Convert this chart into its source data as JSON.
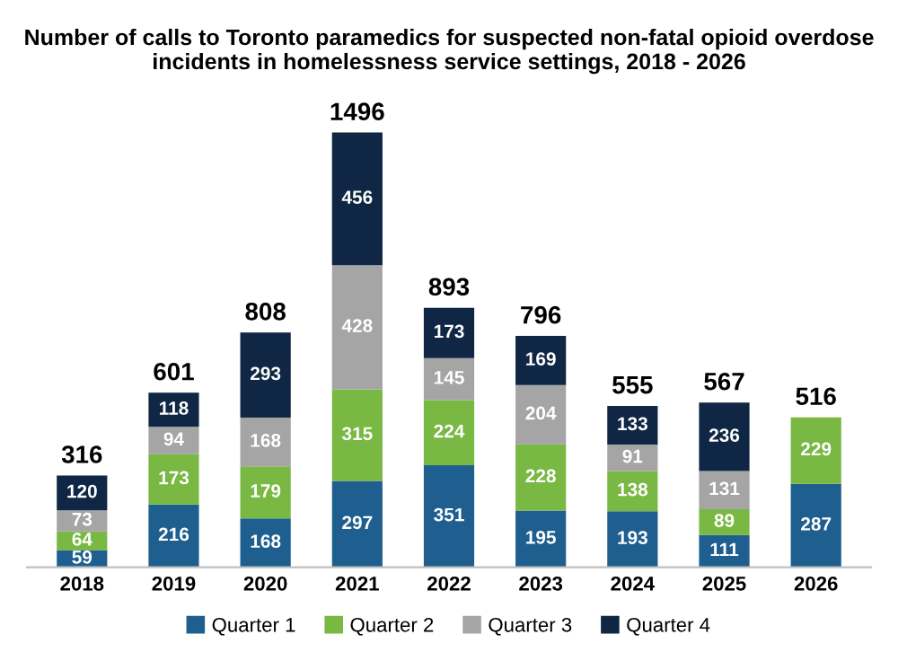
{
  "chart_data": {
    "type": "bar",
    "stacked": true,
    "title": "Number of calls to Toronto paramedics for suspected non-fatal opioid overdose incidents in homelessness service settings, 2018 - 2026",
    "categories": [
      "2018",
      "2019",
      "2020",
      "2021",
      "2022",
      "2023",
      "2024",
      "2025",
      "2026"
    ],
    "series": [
      {
        "name": "Quarter 1",
        "color": "#1f5f8f",
        "values": [
          59,
          216,
          168,
          297,
          351,
          195,
          193,
          111,
          287
        ]
      },
      {
        "name": "Quarter 2",
        "color": "#78b843",
        "values": [
          64,
          173,
          179,
          315,
          224,
          228,
          138,
          89,
          229
        ]
      },
      {
        "name": "Quarter 3",
        "color": "#a5a5a5",
        "values": [
          73,
          94,
          168,
          428,
          145,
          204,
          91,
          131,
          null
        ]
      },
      {
        "name": "Quarter 4",
        "color": "#0f2744",
        "values": [
          120,
          118,
          293,
          456,
          173,
          169,
          133,
          236,
          null
        ]
      }
    ],
    "totals": [
      "316",
      "601",
      "808",
      "1496",
      "893",
      "796",
      "555",
      "567",
      "516"
    ],
    "data_labels": true,
    "tick_labels": "x",
    "grid": false,
    "legend": "bottom"
  }
}
